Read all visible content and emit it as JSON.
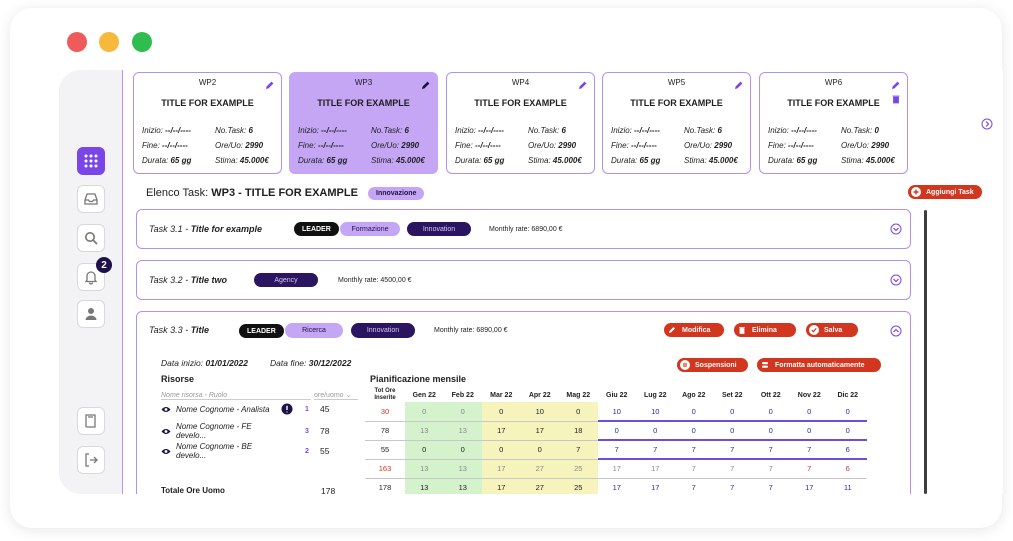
{
  "sidebar": {
    "notification_count": "2"
  },
  "wp_cards": [
    {
      "code": "WP2",
      "title": "TITLE FOR EXAMPLE",
      "inizio": "--/--/----",
      "fine": "--/--/----",
      "durata": "65 gg",
      "notask": "6",
      "oreuo": "2990",
      "stima": "45.000€",
      "selected": false,
      "trash": false
    },
    {
      "code": "WP3",
      "title": "TITLE FOR EXAMPLE",
      "inizio": "--/--/----",
      "fine": "--/--/----",
      "durata": "65 gg",
      "notask": "6",
      "oreuo": "2990",
      "stima": "45.000€",
      "selected": true,
      "trash": false
    },
    {
      "code": "WP4",
      "title": "TITLE FOR EXAMPLE",
      "inizio": "--/--/----",
      "fine": "--/--/----",
      "durata": "65 gg",
      "notask": "6",
      "oreuo": "2990",
      "stima": "45.000€",
      "selected": false,
      "trash": false
    },
    {
      "code": "WP5",
      "title": "TITLE FOR EXAMPLE",
      "inizio": "--/--/----",
      "fine": "--/--/----",
      "durata": "65 gg",
      "notask": "6",
      "oreuo": "2990",
      "stima": "45.000€",
      "selected": false,
      "trash": false
    },
    {
      "code": "WP6",
      "title": "TITLE FOR EXAMPLE",
      "inizio": "--/--/----",
      "fine": "--/--/----",
      "durata": "65 gg",
      "notask": "0",
      "oreuo": "2990",
      "stima": "45.000€",
      "selected": false,
      "trash": true
    }
  ],
  "labels": {
    "inizio": "Inizio:",
    "fine": "Fine:",
    "durata": "Durata:",
    "notask": "No.Task:",
    "oreuo": "Ore/Uo:",
    "stima": "Stima:"
  },
  "elenco": {
    "prefix": "Elenco Task:",
    "title": "WP3 - TITLE FOR EXAMPLE",
    "tag": "Innovazione",
    "add_button": "Aggiungi Task"
  },
  "tasks": [
    {
      "code": "Task 3.1 -",
      "title": "Title for example",
      "leader": "LEADER",
      "tags": [
        "Formazione",
        "Innovation"
      ],
      "rate": "Monthly rate: 6890,00 €"
    },
    {
      "code": "Task 3.2 -",
      "title": "Title two",
      "tags": [
        "Agency"
      ],
      "rate": "Monthly rate: 4500,00 €"
    },
    {
      "code": "Task 3.3 -",
      "title": "Title",
      "leader": "LEADER",
      "tags": [
        "Ricerca",
        "Innovation"
      ],
      "rate": "Monthly rate: 6890,00 €"
    }
  ],
  "task3_actions": {
    "modifica": "Modifica",
    "elimina": "Elimina",
    "salva": "Salva",
    "sospensioni": "Sospensioni",
    "formatta": "Formatta automaticamente"
  },
  "task3_details": {
    "data_inizio_label": "Data inizio:",
    "data_inizio": "01/01/2022",
    "data_fine_label": "Data fine:",
    "data_fine": "30/12/2022",
    "risorse": "Risorse",
    "pianificazione": "Pianificazione mensile",
    "nome_ruolo": "Nome risorsa - Ruolo",
    "ore_uomo": "ore/uomo",
    "tot_ore_inserite": "Tot Ore Inserite",
    "months": [
      "Gen 22",
      "Feb 22",
      "Mar 22",
      "Apr 22",
      "Mag 22",
      "Giu 22",
      "Lug 22",
      "Ago 22",
      "Set 22",
      "Ott 22",
      "Nov 22",
      "Dic 22"
    ],
    "resources": [
      {
        "name": "Nome Cognome - Analista",
        "count": "1",
        "hours": "45",
        "tot": "30",
        "months": [
          "0",
          "0",
          "0",
          "10",
          "0",
          "10",
          "10",
          "0",
          "0",
          "0",
          "0",
          "0"
        ],
        "warning": true
      },
      {
        "name": "Nome Cognome - FE develo...",
        "count": "3",
        "hours": "78",
        "tot": "78",
        "months": [
          "13",
          "13",
          "17",
          "17",
          "18",
          "0",
          "0",
          "0",
          "0",
          "0",
          "0",
          "0"
        ],
        "warning": false
      },
      {
        "name": "Nome Cognome - BE develo...",
        "count": "2",
        "hours": "55",
        "tot": "55",
        "months": [
          "0",
          "0",
          "0",
          "0",
          "7",
          "7",
          "7",
          "7",
          "7",
          "7",
          "7",
          "6"
        ],
        "warning": false
      }
    ],
    "totals_row": {
      "tot": "163",
      "months": [
        "13",
        "13",
        "17",
        "27",
        "25",
        "17",
        "17",
        "7",
        "7",
        "7",
        "7",
        "6"
      ]
    },
    "totale_label": "Totale Ore Uomo",
    "totale_hours": "178",
    "final_row": {
      "tot": "178",
      "months": [
        "13",
        "13",
        "17",
        "27",
        "25",
        "17",
        "17",
        "7",
        "7",
        "7",
        "17",
        "11"
      ]
    }
  }
}
